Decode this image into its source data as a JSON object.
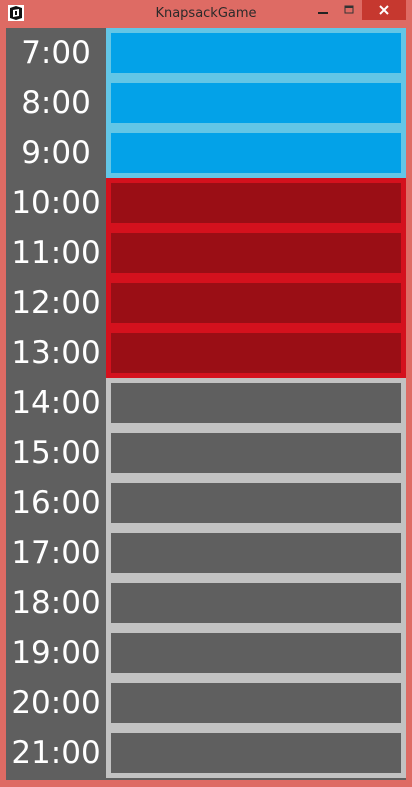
{
  "window": {
    "title": "KnapsackGame"
  },
  "timeline": {
    "times": [
      "7:00",
      "8:00",
      "9:00",
      "10:00",
      "11:00",
      "12:00",
      "13:00",
      "14:00",
      "15:00",
      "16:00",
      "17:00",
      "18:00",
      "19:00",
      "20:00",
      "21:00"
    ]
  },
  "blocks": [
    {
      "start": 0,
      "end": 3,
      "frame_color": "#63c6e6",
      "slot_color": "#03a2e8"
    },
    {
      "start": 3,
      "end": 7,
      "frame_color": "#d4111d",
      "slot_color": "#9a0e15"
    },
    {
      "start": 7,
      "end": 15,
      "frame_color": "#c2c2c2",
      "slot_color": "#5f5f5f"
    }
  ],
  "colors": {
    "window_border": "#de6b64",
    "close_button": "#c6382f",
    "label_background": "#5f5f5f",
    "label_text": "#ffffff"
  }
}
